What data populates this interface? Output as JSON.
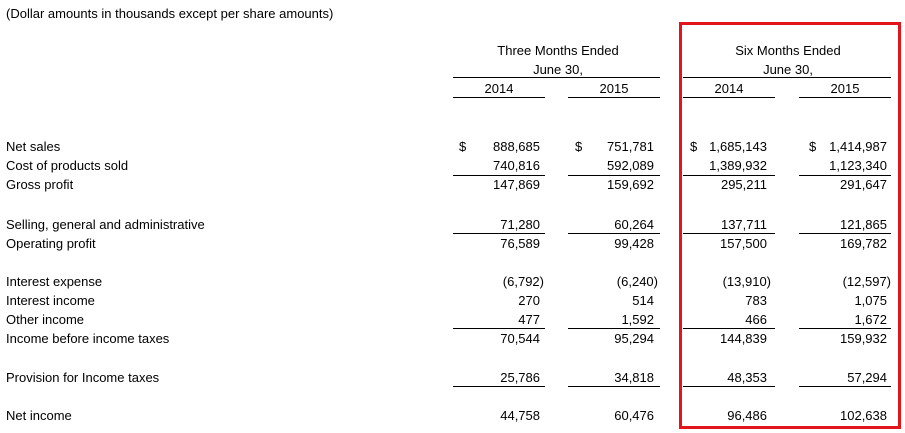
{
  "note": "(Dollar amounts in thousands except per share amounts)",
  "headers": {
    "three_months": "Three Months Ended",
    "six_months": "Six Months Ended",
    "june30": "June 30,",
    "years": [
      "2014",
      "2015",
      "2014",
      "2015"
    ]
  },
  "rows": [
    {
      "label": "Net sales",
      "dollar": true,
      "values": [
        "888,685",
        "751,781",
        "1,685,143",
        "1,414,987"
      ]
    },
    {
      "label": "Cost of products sold",
      "values": [
        "740,816",
        "592,089",
        "1,389,932",
        "1,123,340"
      ]
    },
    {
      "label": "Gross profit",
      "values": [
        "147,869",
        "159,692",
        "295,211",
        "291,647"
      ]
    },
    {
      "label": "Selling, general and administrative",
      "values": [
        "71,280",
        "60,264",
        "137,711",
        "121,865"
      ]
    },
    {
      "label": "Operating profit",
      "values": [
        "76,589",
        "99,428",
        "157,500",
        "169,782"
      ]
    },
    {
      "label": "Interest expense",
      "values": [
        "(6,792)",
        "(6,240)",
        "(13,910)",
        "(12,597)"
      ]
    },
    {
      "label": "Interest income",
      "values": [
        "270",
        "514",
        "783",
        "1,075"
      ]
    },
    {
      "label": "Other income",
      "values": [
        "477",
        "1,592",
        "466",
        "1,672"
      ]
    },
    {
      "label": "Income before income taxes",
      "values": [
        "70,544",
        "95,294",
        "144,839",
        "159,932"
      ]
    },
    {
      "label": "Provision for Income taxes",
      "values": [
        "25,786",
        "34,818",
        "48,353",
        "57,294"
      ]
    },
    {
      "label": "Net income",
      "values": [
        "44,758",
        "60,476",
        "96,486",
        "102,638"
      ]
    }
  ],
  "currency_symbol": "$",
  "highlight_color": "#e3141b"
}
